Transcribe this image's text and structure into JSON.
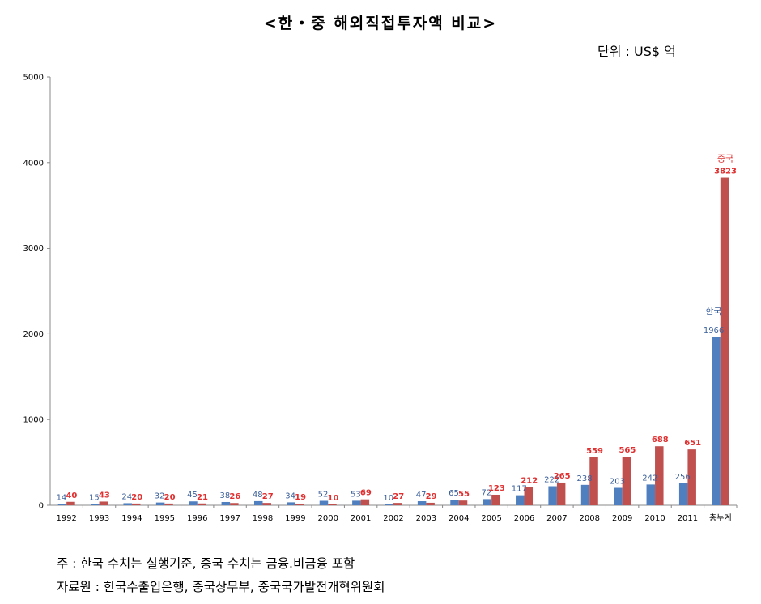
{
  "title": "<한・중 해외직접투자액 비교>",
  "unit": "단위 : US$ 억",
  "colors": {
    "korea": "#4f7fbf",
    "china": "#c0504d",
    "korea_label": "#3a5f9a",
    "china_label": "#e03030",
    "axis": "#888888"
  },
  "chart_data": {
    "type": "bar",
    "title": "<한・중 해외직접투자액 비교>",
    "xlabel": "",
    "ylabel": "",
    "ylim": [
      0,
      5000
    ],
    "yticks": [
      "0",
      "1000",
      "2000",
      "3000",
      "4000",
      "5000"
    ],
    "grid": false,
    "categories": [
      "1992",
      "1993",
      "1994",
      "1995",
      "1996",
      "1997",
      "1998",
      "1999",
      "2000",
      "2001",
      "2002",
      "2003",
      "2004",
      "2005",
      "2006",
      "2007",
      "2008",
      "2009",
      "2010",
      "2011",
      "총누계"
    ],
    "series": [
      {
        "name": "한국",
        "values": [
          14,
          15,
          24,
          32,
          45,
          38,
          48,
          34,
          52,
          53,
          10,
          47,
          65,
          72,
          117,
          222,
          238,
          203,
          242,
          256,
          1966
        ]
      },
      {
        "name": "중국",
        "values": [
          40,
          43,
          20,
          20,
          21,
          26,
          27,
          19,
          10,
          69,
          27,
          29,
          55,
          123,
          212,
          265,
          559,
          565,
          688,
          651,
          3823
        ]
      }
    ]
  },
  "notes": {
    "line1": "주 : 한국 수치는 실행기준, 중국 수치는 금융.비금융 포함",
    "line2": "자료원 : 한국수출입은행, 중국상무부, 중국국가발전개혁위원회"
  }
}
